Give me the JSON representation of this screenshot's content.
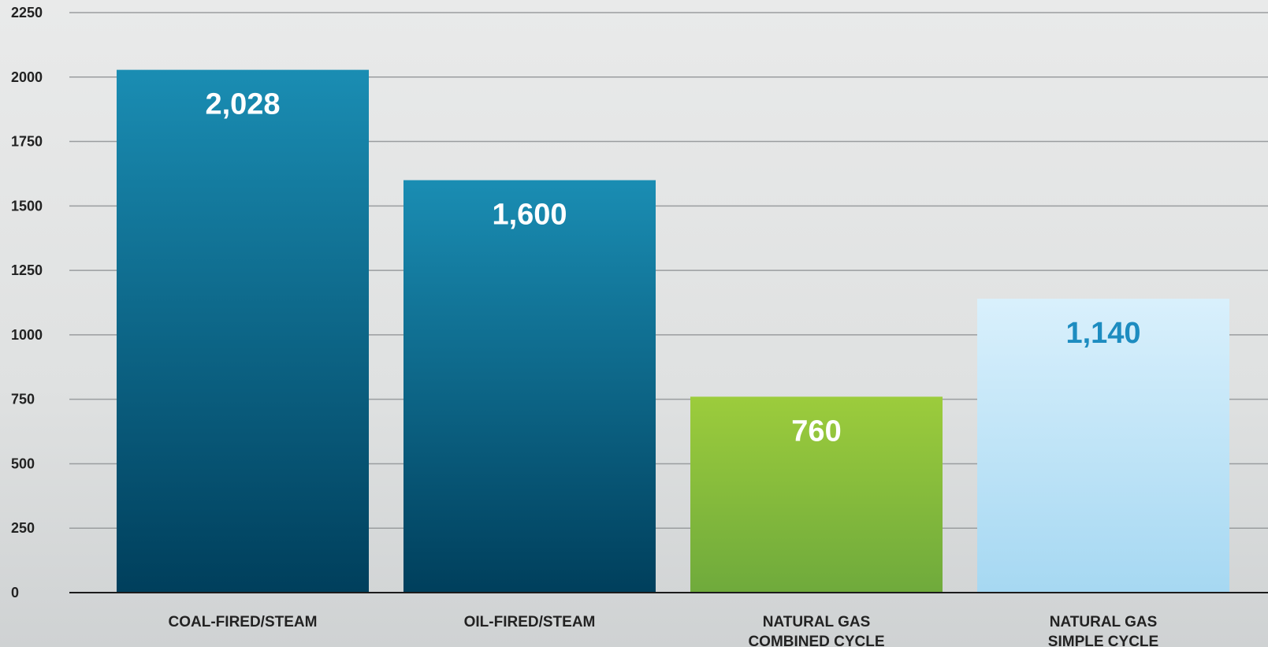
{
  "chart_data": {
    "type": "bar",
    "categories": [
      [
        "COAL-FIRED/STEAM"
      ],
      [
        "OIL-FIRED/STEAM"
      ],
      [
        "NATURAL GAS",
        "COMBINED CYCLE"
      ],
      [
        "NATURAL GAS",
        "SIMPLE CYCLE"
      ]
    ],
    "values": [
      2028,
      1600,
      760,
      1140
    ],
    "value_labels": [
      "2,028",
      "1,600",
      "760",
      "1,140"
    ],
    "ylim": [
      0,
      2250
    ],
    "yticks": [
      0,
      250,
      500,
      750,
      1000,
      1250,
      1500,
      1750,
      2000,
      2250
    ],
    "grid": true,
    "title": "",
    "xlabel": "",
    "ylabel": "",
    "bar_colors": [
      [
        "#1a8db3",
        "#003f5c"
      ],
      [
        "#1a8db3",
        "#003f5c"
      ],
      [
        "#9ccc3c",
        "#6faa3c"
      ],
      [
        "#d9f0fc",
        "#a6d8f2"
      ]
    ],
    "value_label_colors": [
      "#ffffff",
      "#ffffff",
      "#ffffff",
      "#1d8cc0"
    ]
  }
}
